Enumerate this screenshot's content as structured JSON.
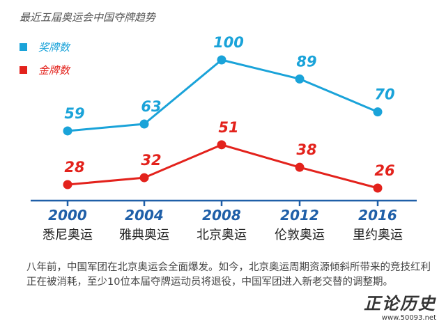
{
  "chart_data": {
    "type": "line",
    "title": "最近五届奥运会中国夺牌趋势",
    "x": [
      "2000",
      "2004",
      "2008",
      "2012",
      "2016"
    ],
    "categories": [
      "悉尼奥运",
      "雅典奥运",
      "北京奥运",
      "伦敦奥运",
      "里约奥运"
    ],
    "series": [
      {
        "name": "奖牌数",
        "values": [
          59,
          63,
          100,
          89,
          70
        ],
        "color": "#1aa3d9"
      },
      {
        "name": "金牌数",
        "values": [
          28,
          32,
          51,
          38,
          26
        ],
        "color": "#e3221c"
      }
    ],
    "legend_position": "top-left",
    "grid": false
  },
  "caption": "八年前，中国军团在北京奥运会全面爆发。如今，北京奥运周期资源倾斜所带来的竞技红利正在被消耗，至少10位本届夺牌运动员将退役，中国军团进入新老交替的调整期。",
  "watermark": {
    "logo": "正论历史",
    "url": "www.50093.net"
  },
  "colors": {
    "axis": "#1f5fa8",
    "year": "#1f5fa8"
  }
}
